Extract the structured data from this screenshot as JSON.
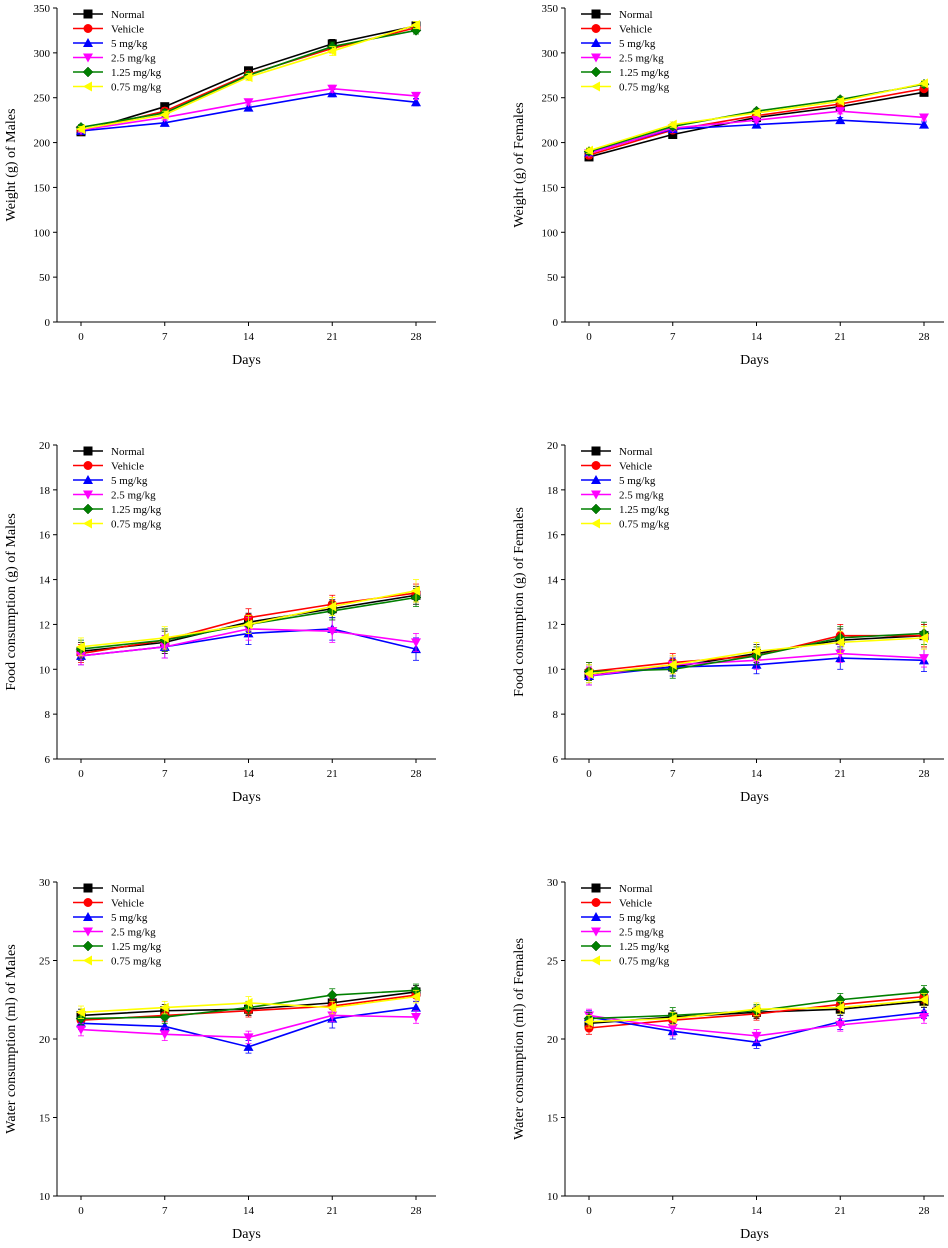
{
  "figure": {
    "legend_entries": [
      "Normal",
      "Vehicle",
      "5 mg/kg",
      "2.5 mg/kg",
      "1.25 mg/kg",
      "0.75 mg/kg"
    ],
    "series_colors": {
      "Normal": "#000000",
      "Vehicle": "#ff0000",
      "5 mg/kg": "#0000ff",
      "2.5 mg/kg": "#ff00ff",
      "1.25 mg/kg": "#008000",
      "0.75 mg/kg": "#ffff00"
    },
    "series_markers": {
      "Normal": "square",
      "Vehicle": "circle",
      "5 mg/kg": "triangle-up",
      "2.5 mg/kg": "triangle-down",
      "1.25 mg/kg": "diamond",
      "0.75 mg/kg": "triangle-left"
    }
  },
  "chart_data": [
    {
      "id": "males-weight",
      "type": "line",
      "xlabel": "Days",
      "ylabel": "Weight (g) of Males",
      "x": [
        0,
        7,
        14,
        21,
        28
      ],
      "ylim": [
        0,
        350
      ],
      "yticks": [
        0,
        50,
        100,
        150,
        200,
        250,
        300,
        350
      ],
      "legend_position": "top-left",
      "series": [
        {
          "name": "Normal",
          "values": [
            212,
            240,
            280,
            310,
            330
          ],
          "errors": [
            3,
            4,
            4,
            5,
            4
          ]
        },
        {
          "name": "Vehicle",
          "values": [
            213,
            235,
            276,
            305,
            328
          ],
          "errors": [
            3,
            4,
            4,
            5,
            4
          ]
        },
        {
          "name": "5 mg/kg",
          "values": [
            213,
            222,
            239,
            255,
            245
          ],
          "errors": [
            3,
            3,
            3,
            4,
            4
          ]
        },
        {
          "name": "2.5 mg/kg",
          "values": [
            214,
            228,
            245,
            260,
            252
          ],
          "errors": [
            3,
            3,
            3,
            4,
            4
          ]
        },
        {
          "name": "1.25 mg/kg",
          "values": [
            217,
            233,
            275,
            307,
            325
          ],
          "errors": [
            3,
            4,
            4,
            5,
            4
          ]
        },
        {
          "name": "0.75 mg/kg",
          "values": [
            215,
            231,
            273,
            302,
            331
          ],
          "errors": [
            3,
            4,
            4,
            5,
            4
          ]
        }
      ]
    },
    {
      "id": "females-weight",
      "type": "line",
      "xlabel": "Days",
      "ylabel": "Weight (g) of Females",
      "x": [
        0,
        7,
        14,
        21,
        28
      ],
      "ylim": [
        0,
        350
      ],
      "yticks": [
        0,
        50,
        100,
        150,
        200,
        250,
        300,
        350
      ],
      "legend_position": "top-left",
      "series": [
        {
          "name": "Normal",
          "values": [
            184,
            209,
            228,
            240,
            256
          ],
          "errors": [
            4,
            3,
            3,
            4,
            3
          ]
        },
        {
          "name": "Vehicle",
          "values": [
            186,
            214,
            230,
            243,
            260
          ],
          "errors": [
            4,
            3,
            3,
            4,
            3
          ]
        },
        {
          "name": "5 mg/kg",
          "values": [
            189,
            215,
            220,
            225,
            220
          ],
          "errors": [
            3,
            3,
            3,
            3,
            3
          ]
        },
        {
          "name": "2.5 mg/kg",
          "values": [
            188,
            216,
            225,
            235,
            228
          ],
          "errors": [
            3,
            3,
            3,
            3,
            3
          ]
        },
        {
          "name": "1.25 mg/kg",
          "values": [
            190,
            218,
            235,
            248,
            265
          ],
          "errors": [
            3,
            3,
            3,
            3,
            3
          ]
        },
        {
          "name": "0.75 mg/kg",
          "values": [
            191,
            220,
            233,
            246,
            266
          ],
          "errors": [
            3,
            3,
            3,
            3,
            3
          ]
        }
      ]
    },
    {
      "id": "males-food",
      "type": "line",
      "xlabel": "Days",
      "ylabel": "Food consumption (g) of Males",
      "x": [
        0,
        7,
        14,
        21,
        28
      ],
      "ylim": [
        6,
        20
      ],
      "yticks": [
        6,
        8,
        10,
        12,
        14,
        16,
        18,
        20
      ],
      "legend_position": "top-left",
      "series": [
        {
          "name": "Normal",
          "values": [
            10.8,
            11.2,
            12.1,
            12.7,
            13.3
          ],
          "errors": [
            0.4,
            0.5,
            0.4,
            0.4,
            0.4
          ]
        },
        {
          "name": "Vehicle",
          "values": [
            10.7,
            11.3,
            12.3,
            12.9,
            13.4
          ],
          "errors": [
            0.4,
            0.5,
            0.4,
            0.4,
            0.4
          ]
        },
        {
          "name": "5 mg/kg",
          "values": [
            10.6,
            11.0,
            11.6,
            11.8,
            10.9
          ],
          "errors": [
            0.4,
            0.5,
            0.5,
            0.5,
            0.5
          ]
        },
        {
          "name": "2.5 mg/kg",
          "values": [
            10.6,
            11.0,
            11.8,
            11.7,
            11.2
          ],
          "errors": [
            0.4,
            0.5,
            0.5,
            0.5,
            0.4
          ]
        },
        {
          "name": "1.25 mg/kg",
          "values": [
            10.9,
            11.3,
            12.0,
            12.6,
            13.2
          ],
          "errors": [
            0.4,
            0.5,
            0.4,
            0.4,
            0.4
          ]
        },
        {
          "name": "0.75 mg/kg",
          "values": [
            11.0,
            11.4,
            12.0,
            12.8,
            13.5
          ],
          "errors": [
            0.4,
            0.5,
            0.4,
            0.4,
            0.5
          ]
        }
      ]
    },
    {
      "id": "females-food",
      "type": "line",
      "xlabel": "Days",
      "ylabel": "Food consumption (g) of Females",
      "x": [
        0,
        7,
        14,
        21,
        28
      ],
      "ylim": [
        6,
        20
      ],
      "yticks": [
        6,
        8,
        10,
        12,
        14,
        16,
        18,
        20
      ],
      "legend_position": "top-left",
      "series": [
        {
          "name": "Normal",
          "values": [
            9.8,
            10.1,
            10.7,
            11.3,
            11.5
          ],
          "errors": [
            0.4,
            0.4,
            0.4,
            0.5,
            0.5
          ]
        },
        {
          "name": "Vehicle",
          "values": [
            9.9,
            10.3,
            10.6,
            11.5,
            11.5
          ],
          "errors": [
            0.4,
            0.4,
            0.4,
            0.5,
            0.5
          ]
        },
        {
          "name": "5 mg/kg",
          "values": [
            9.7,
            10.1,
            10.2,
            10.5,
            10.4
          ],
          "errors": [
            0.4,
            0.4,
            0.4,
            0.5,
            0.5
          ]
        },
        {
          "name": "2.5 mg/kg",
          "values": [
            9.7,
            10.2,
            10.4,
            10.7,
            10.5
          ],
          "errors": [
            0.4,
            0.4,
            0.4,
            0.4,
            0.4
          ]
        },
        {
          "name": "1.25 mg/kg",
          "values": [
            9.9,
            10.0,
            10.6,
            11.4,
            11.6
          ],
          "errors": [
            0.4,
            0.4,
            0.4,
            0.5,
            0.5
          ]
        },
        {
          "name": "0.75 mg/kg",
          "values": [
            9.8,
            10.2,
            10.8,
            11.2,
            11.4
          ],
          "errors": [
            0.4,
            0.4,
            0.4,
            0.5,
            0.5
          ]
        }
      ]
    },
    {
      "id": "males-water",
      "type": "line",
      "xlabel": "Days",
      "ylabel": "Water consumption (ml) of Males",
      "x": [
        0,
        7,
        14,
        21,
        28
      ],
      "ylim": [
        10,
        30
      ],
      "yticks": [
        10,
        15,
        20,
        25,
        30
      ],
      "legend_position": "top-left",
      "series": [
        {
          "name": "Normal",
          "values": [
            21.5,
            21.8,
            21.9,
            22.3,
            23.0
          ],
          "errors": [
            0.4,
            0.4,
            0.4,
            0.4,
            0.4
          ]
        },
        {
          "name": "Vehicle",
          "values": [
            21.2,
            21.5,
            21.8,
            22.1,
            22.8
          ],
          "errors": [
            0.4,
            0.4,
            0.4,
            0.4,
            0.4
          ]
        },
        {
          "name": "5 mg/kg",
          "values": [
            21.0,
            20.8,
            19.5,
            21.3,
            22.0
          ],
          "errors": [
            0.4,
            0.4,
            0.4,
            0.6,
            0.4
          ]
        },
        {
          "name": "2.5 mg/kg",
          "values": [
            20.6,
            20.3,
            20.1,
            21.5,
            21.4
          ],
          "errors": [
            0.4,
            0.4,
            0.4,
            0.4,
            0.4
          ]
        },
        {
          "name": "1.25 mg/kg",
          "values": [
            21.3,
            21.4,
            22.0,
            22.8,
            23.1
          ],
          "errors": [
            0.4,
            0.4,
            0.4,
            0.4,
            0.4
          ]
        },
        {
          "name": "0.75 mg/kg",
          "values": [
            21.7,
            22.0,
            22.3,
            22.0,
            22.7
          ],
          "errors": [
            0.4,
            0.4,
            0.4,
            0.4,
            0.4
          ]
        }
      ]
    },
    {
      "id": "females-water",
      "type": "line",
      "xlabel": "Days",
      "ylabel": "Water consumption (ml) of Females",
      "x": [
        0,
        7,
        14,
        21,
        28
      ],
      "ylim": [
        10,
        30
      ],
      "yticks": [
        10,
        15,
        20,
        25,
        30
      ],
      "legend_position": "top-left",
      "series": [
        {
          "name": "Normal",
          "values": [
            21.0,
            21.4,
            21.7,
            21.9,
            22.4
          ],
          "errors": [
            0.4,
            0.4,
            0.4,
            0.4,
            0.4
          ]
        },
        {
          "name": "Vehicle",
          "values": [
            20.7,
            21.2,
            21.6,
            22.2,
            22.7
          ],
          "errors": [
            0.4,
            0.4,
            0.4,
            0.4,
            0.4
          ]
        },
        {
          "name": "5 mg/kg",
          "values": [
            21.4,
            20.5,
            19.8,
            21.1,
            21.7
          ],
          "errors": [
            0.4,
            0.5,
            0.4,
            0.5,
            0.4
          ]
        },
        {
          "name": "2.5 mg/kg",
          "values": [
            21.5,
            20.7,
            20.2,
            20.9,
            21.4
          ],
          "errors": [
            0.4,
            0.5,
            0.4,
            0.4,
            0.4
          ]
        },
        {
          "name": "1.25 mg/kg",
          "values": [
            21.3,
            21.5,
            21.8,
            22.5,
            23.0
          ],
          "errors": [
            0.4,
            0.5,
            0.4,
            0.4,
            0.4
          ]
        },
        {
          "name": "0.75 mg/kg",
          "values": [
            21.1,
            21.3,
            21.9,
            22.0,
            22.5
          ],
          "errors": [
            0.4,
            0.4,
            0.4,
            0.4,
            0.4
          ]
        }
      ]
    }
  ]
}
